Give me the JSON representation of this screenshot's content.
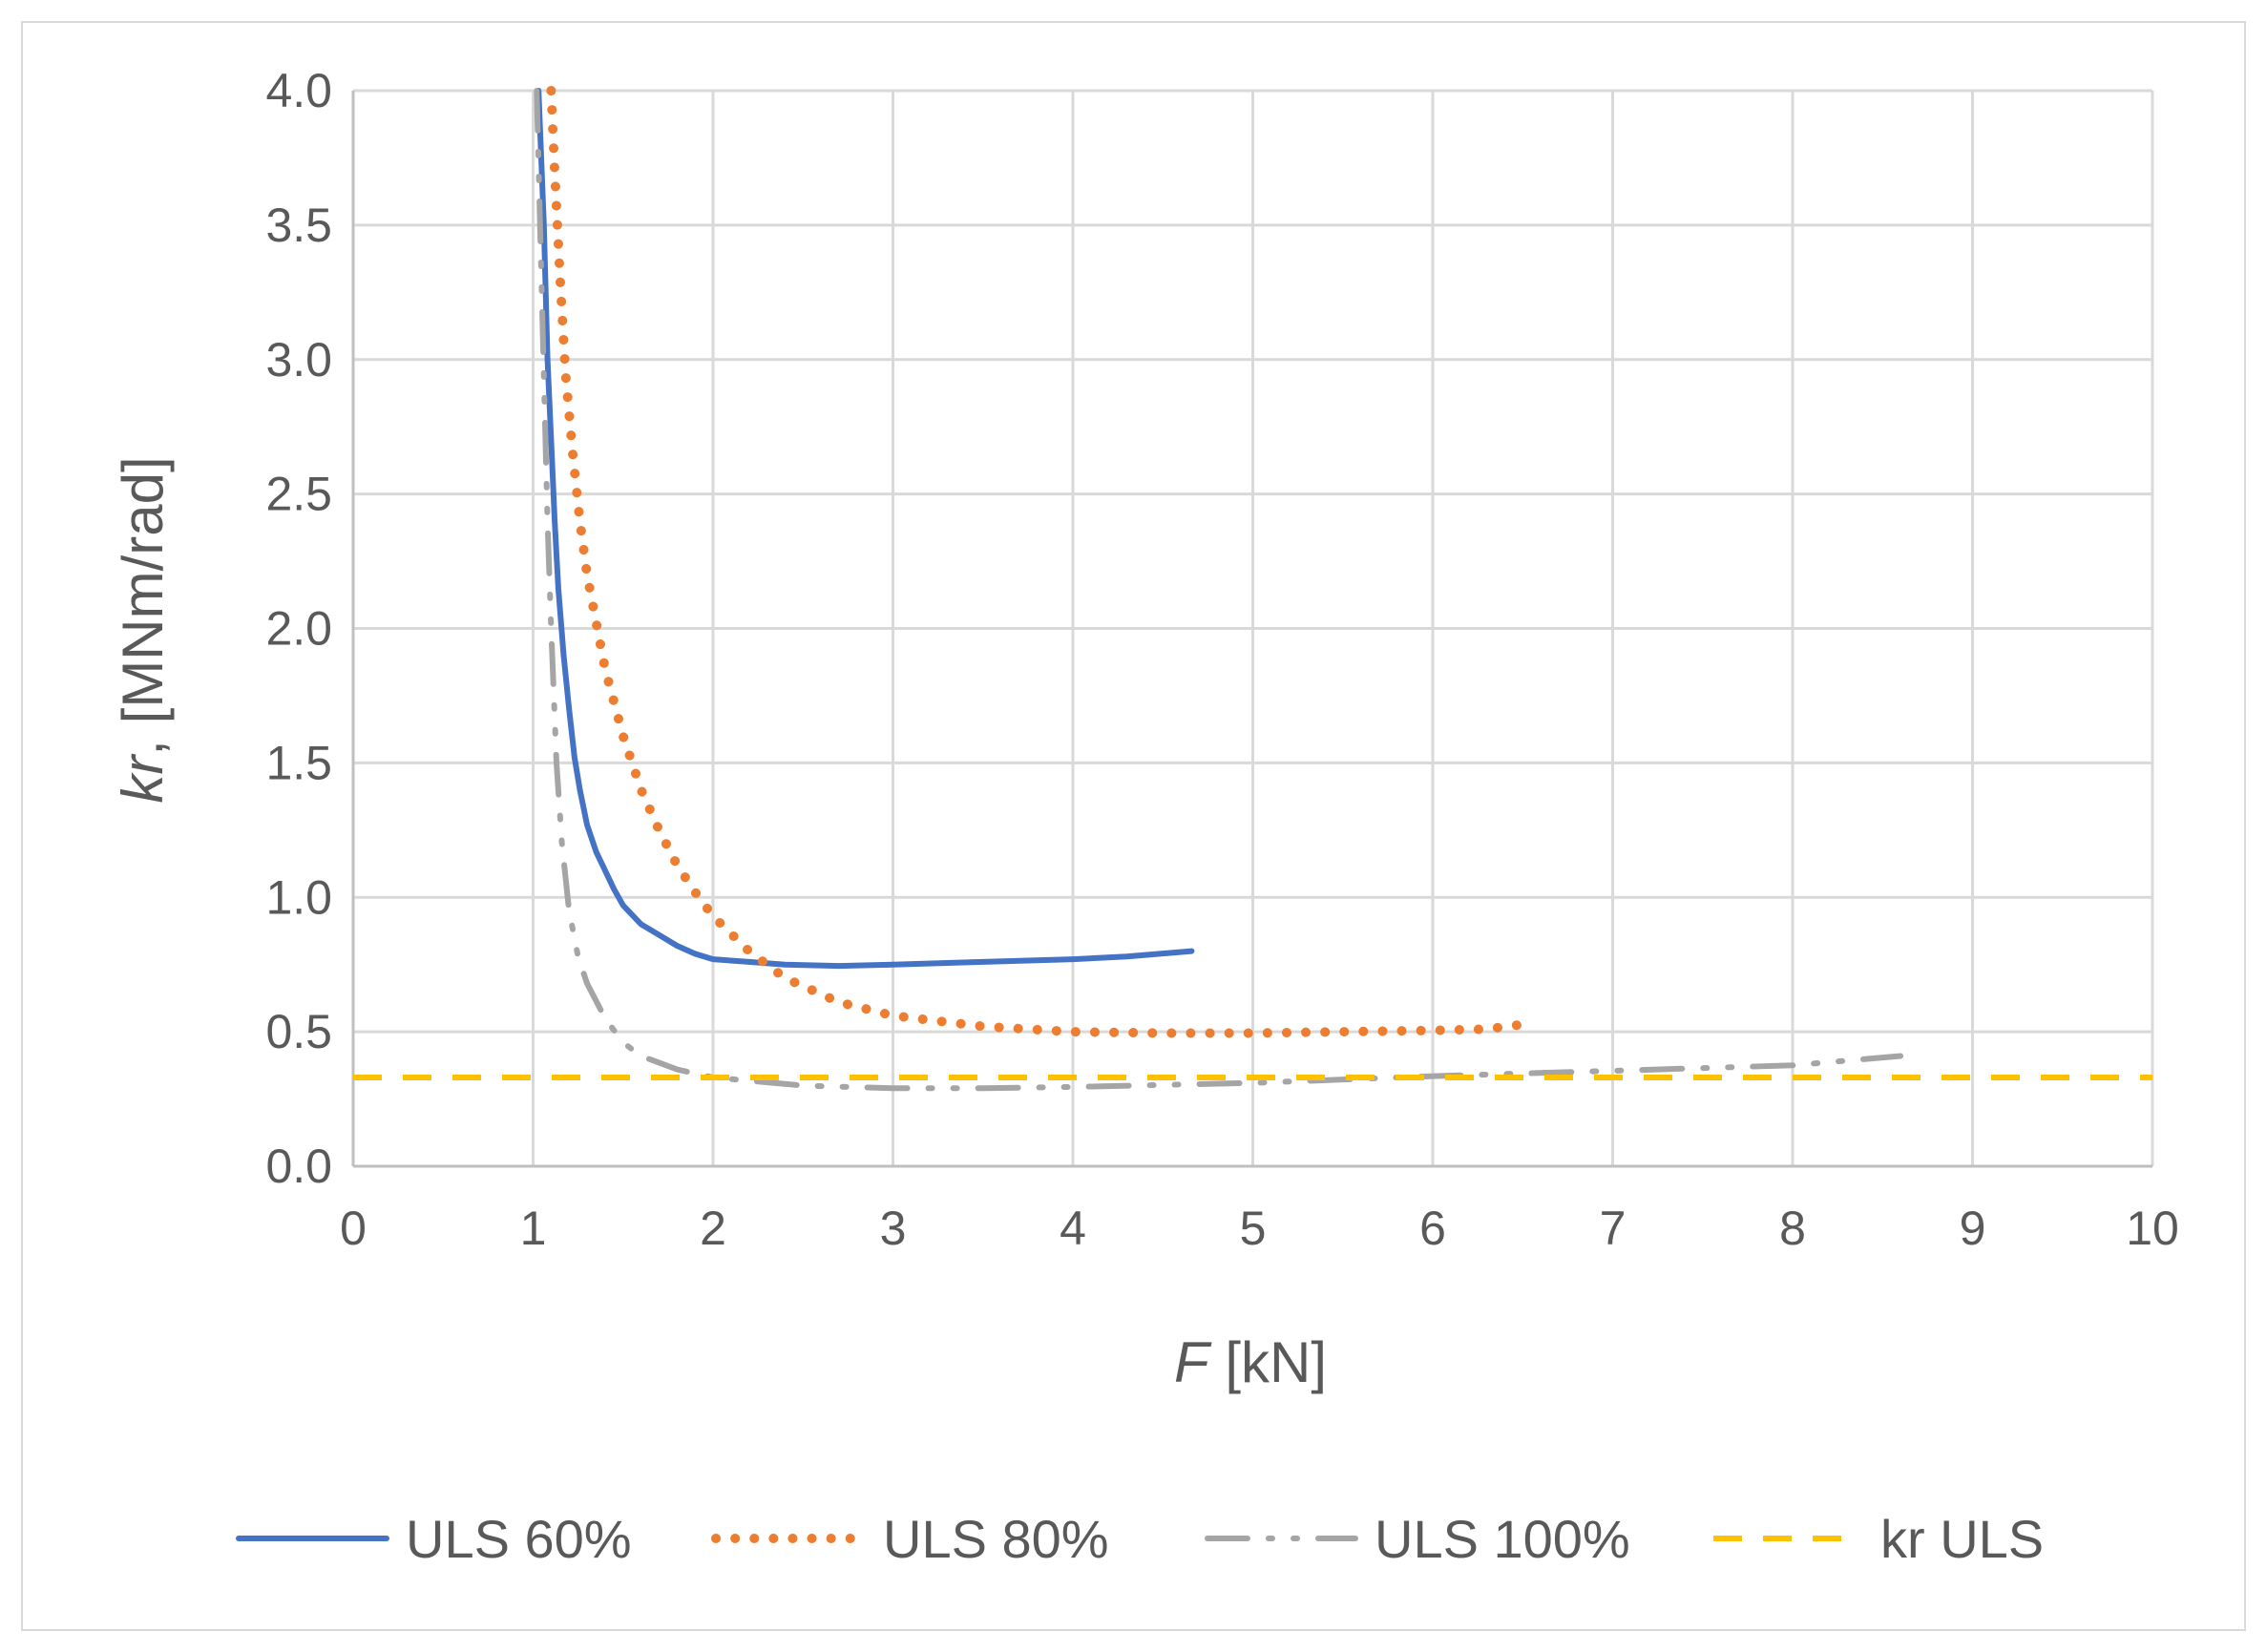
{
  "chart_data": {
    "type": "line",
    "title": "",
    "xlabel": {
      "italic": "F",
      "rest": " [kN]"
    },
    "ylabel": {
      "italic": "kr",
      "rest": ", [MNm/rad]"
    },
    "xlim": [
      0,
      10
    ],
    "ylim": [
      0,
      4
    ],
    "xticks": [
      0,
      1,
      2,
      3,
      4,
      5,
      6,
      7,
      8,
      9,
      10
    ],
    "yticks": [
      0.0,
      0.5,
      1.0,
      1.5,
      2.0,
      2.5,
      3.0,
      3.5,
      4.0
    ],
    "xtick_labels": [
      "0",
      "1",
      "2",
      "3",
      "4",
      "5",
      "6",
      "7",
      "8",
      "9",
      "10"
    ],
    "ytick_labels": [
      "0.0",
      "0.5",
      "1.0",
      "1.5",
      "2.0",
      "2.5",
      "3.0",
      "3.5",
      "4.0"
    ],
    "grid": true,
    "legend_position": "bottom",
    "series": [
      {
        "name": "ULS 60%",
        "color": "#4472c4",
        "style": "solid",
        "x": [
          1.03,
          1.06,
          1.08,
          1.1,
          1.12,
          1.14,
          1.17,
          1.2,
          1.23,
          1.26,
          1.3,
          1.35,
          1.4,
          1.45,
          1.5,
          1.6,
          1.7,
          1.8,
          1.9,
          2.0,
          2.2,
          2.4,
          2.7,
          3.0,
          3.5,
          4.0,
          4.3,
          4.66
        ],
        "y": [
          4.0,
          3.5,
          3.0,
          2.7,
          2.4,
          2.15,
          1.9,
          1.7,
          1.52,
          1.4,
          1.27,
          1.17,
          1.1,
          1.03,
          0.97,
          0.9,
          0.86,
          0.82,
          0.79,
          0.77,
          0.76,
          0.75,
          0.745,
          0.75,
          0.76,
          0.77,
          0.78,
          0.8
        ]
      },
      {
        "name": "ULS 80%",
        "color": "#ed7d31",
        "style": "dotted",
        "x": [
          1.1,
          1.12,
          1.15,
          1.18,
          1.22,
          1.26,
          1.3,
          1.4,
          1.5,
          1.6,
          1.7,
          1.8,
          1.9,
          2.0,
          2.2,
          2.4,
          2.7,
          3.0,
          3.5,
          4.0,
          4.5,
          5.0,
          5.5,
          6.0,
          6.3,
          6.53
        ],
        "y": [
          4.0,
          3.7,
          3.3,
          2.95,
          2.65,
          2.4,
          2.2,
          1.85,
          1.6,
          1.4,
          1.25,
          1.12,
          1.02,
          0.93,
          0.8,
          0.7,
          0.61,
          0.56,
          0.52,
          0.5,
          0.495,
          0.495,
          0.5,
          0.505,
          0.51,
          0.53
        ]
      },
      {
        "name": "ULS 100%",
        "color": "#a5a5a5",
        "style": "dashdotdot",
        "x": [
          1.02,
          1.05,
          1.08,
          1.1,
          1.13,
          1.16,
          1.2,
          1.25,
          1.3,
          1.4,
          1.5,
          1.6,
          1.8,
          2.0,
          2.5,
          3.0,
          3.5,
          4.0,
          5.0,
          6.0,
          7.0,
          8.0,
          8.6
        ],
        "y": [
          4.0,
          3.2,
          2.4,
          2.0,
          1.5,
          1.2,
          0.95,
          0.78,
          0.68,
          0.55,
          0.46,
          0.41,
          0.36,
          0.33,
          0.3,
          0.29,
          0.29,
          0.295,
          0.31,
          0.335,
          0.355,
          0.375,
          0.41
        ]
      },
      {
        "name": "kr ULS",
        "color": "#ffc000",
        "style": "dashed",
        "x": [
          0,
          10
        ],
        "y": [
          0.33,
          0.33
        ]
      }
    ]
  }
}
